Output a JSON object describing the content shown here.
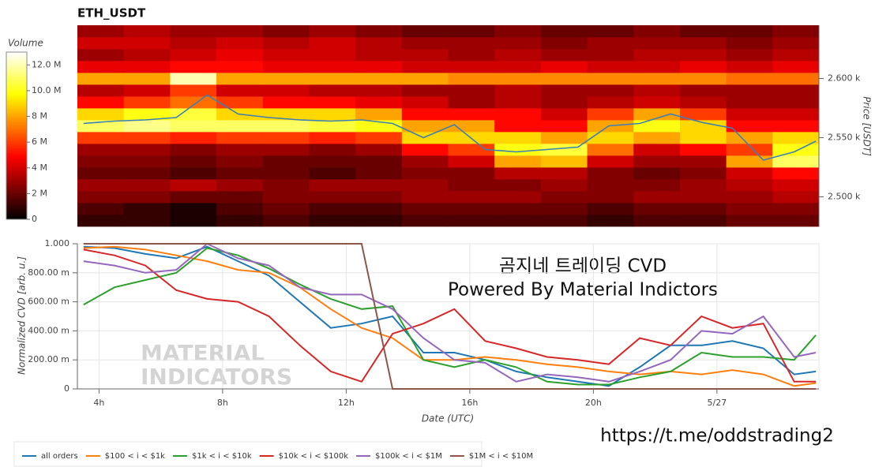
{
  "chart_data": [
    {
      "type": "heatmap",
      "title": "ETH_USDT",
      "ylabel": "Price [USDT]",
      "zlabel": "Volume",
      "colorscale": "hot",
      "xlim": [
        3.3,
        27.3
      ],
      "x": [
        4.05,
        5.55,
        7.05,
        8.55,
        10.05,
        11.55,
        13.05,
        14.55,
        16.05,
        17.55,
        19.05,
        20.55,
        22.05,
        23.55,
        25.05,
        26.55
      ],
      "y": [
        2480,
        2490,
        2500,
        2510,
        2520,
        2530,
        2540,
        2550,
        2560,
        2570,
        2580,
        2590,
        2600,
        2610,
        2620,
        2630,
        2640
      ],
      "ylim": [
        2475,
        2645
      ],
      "yticks": [
        {
          "value": 2500,
          "label": "2.500 k"
        },
        {
          "value": 2550,
          "label": "2.550 k"
        },
        {
          "value": 2600,
          "label": "2.600 k"
        }
      ],
      "zlim": [
        0,
        13
      ],
      "zticks": [
        0,
        {
          "value": 2,
          "label": "2 M"
        },
        {
          "value": 4,
          "label": "4 M"
        },
        {
          "value": 6,
          "label": "6 M"
        },
        {
          "value": 8,
          "label": "8 M"
        },
        {
          "value": 10,
          "label": "10.0 M"
        },
        {
          "value": 12,
          "label": "12.0 M"
        }
      ],
      "z": [
        [
          1,
          1,
          0.5,
          1,
          1.5,
          1,
          1,
          1.5,
          1.5,
          1.5,
          1.5,
          1,
          1.5,
          1.5,
          2,
          2
        ],
        [
          1.5,
          1,
          0.5,
          1.5,
          2,
          1.5,
          1.5,
          2,
          2,
          2,
          2,
          1.5,
          2,
          2,
          2.5,
          2.5
        ],
        [
          2.5,
          2.5,
          2,
          2,
          2.5,
          2.5,
          2.5,
          3,
          3,
          3,
          2.5,
          2.5,
          3,
          3,
          3,
          3.5
        ],
        [
          3,
          3,
          3.5,
          3,
          2.5,
          3,
          3,
          3,
          2.5,
          2.5,
          3,
          2.5,
          2.5,
          3,
          3.5,
          4
        ],
        [
          2,
          2,
          1.5,
          2,
          2,
          1.5,
          2,
          2.5,
          2.5,
          3.5,
          3.5,
          2.5,
          2,
          2.5,
          4,
          5
        ],
        [
          2.5,
          2.5,
          2,
          2.5,
          2,
          2,
          2,
          3,
          4,
          8,
          8.5,
          4,
          3,
          3,
          8,
          11
        ],
        [
          3,
          3,
          2.5,
          3,
          3,
          2.5,
          3,
          5,
          6,
          10,
          10.5,
          7,
          4,
          5,
          6,
          10
        ],
        [
          6,
          6,
          5.5,
          6,
          6,
          5.5,
          6,
          9,
          9,
          9,
          8,
          9,
          8,
          9,
          8,
          9
        ],
        [
          11,
          11.5,
          11,
          11,
          11,
          10.5,
          10,
          8,
          8,
          5,
          5,
          8,
          10,
          9,
          5,
          5
        ],
        [
          9,
          10,
          10.5,
          9,
          9,
          9,
          8,
          5,
          5,
          5,
          4,
          6,
          8,
          6,
          4,
          4
        ],
        [
          5,
          6,
          7,
          6,
          5,
          5,
          4.5,
          4,
          3,
          3.5,
          3,
          3.5,
          4,
          3.5,
          3,
          3
        ],
        [
          3.5,
          4,
          6,
          4,
          4,
          3.5,
          3.5,
          3,
          3,
          3.5,
          3,
          3,
          3.5,
          3,
          3,
          3
        ],
        [
          8,
          8,
          12,
          8,
          8,
          8,
          8,
          8,
          7.5,
          7.5,
          7.5,
          7.5,
          7.5,
          7.5,
          7,
          7
        ],
        [
          4.5,
          4.5,
          5,
          5,
          4.5,
          4.5,
          4.5,
          4,
          4,
          4,
          4.5,
          4,
          4,
          4.5,
          4,
          4.5
        ],
        [
          3,
          3.5,
          4,
          4.5,
          4,
          4,
          3.5,
          3.5,
          3,
          3.5,
          3,
          3,
          3.5,
          3.5,
          3,
          3.5
        ],
        [
          4,
          4,
          3.5,
          4,
          3.5,
          4,
          3.5,
          3,
          3,
          3,
          2.5,
          3,
          3,
          3,
          2.5,
          3
        ],
        [
          3,
          3.5,
          3,
          3,
          2.5,
          3,
          2.5,
          2,
          2,
          2.5,
          2,
          2,
          2.5,
          2,
          2,
          2.5
        ]
      ],
      "line": {
        "color": "#3b80b5",
        "x": [
          3.5,
          4.5,
          5.5,
          6.5,
          7.5,
          8.5,
          9.5,
          10.5,
          11.5,
          12.5,
          13.5,
          14.5,
          15.5,
          16.5,
          17.5,
          18.5,
          19.5,
          20.5,
          21.5,
          22.5,
          23.5,
          24.5,
          25.5,
          26.5,
          27.2
        ],
        "values": [
          2562,
          2564,
          2565,
          2567,
          2586,
          2570,
          2567,
          2565,
          2564,
          2565,
          2562,
          2550,
          2561,
          2540,
          2538,
          2540,
          2542,
          2560,
          2562,
          2570,
          2563,
          2558,
          2531,
          2538,
          2547
        ]
      }
    },
    {
      "type": "line",
      "ylabel": "Normalized CVD [arb. u.]",
      "xlabel": "Date (UTC)",
      "grid": true,
      "xlim": [
        3.3,
        27.3
      ],
      "xticks": [
        {
          "value": 4,
          "label": "4h"
        },
        {
          "value": 8,
          "label": "8h"
        },
        {
          "value": 12,
          "label": "12h"
        },
        {
          "value": 16,
          "label": "16h"
        },
        {
          "value": 20,
          "label": "20h"
        },
        {
          "value": 24,
          "label": "5/27"
        }
      ],
      "ylim": [
        0,
        1
      ],
      "yticks": [
        0,
        {
          "value": 0.2,
          "label": "200.00 m"
        },
        {
          "value": 0.4,
          "label": "400.00 m"
        },
        {
          "value": 0.6,
          "label": "600.00 m"
        },
        {
          "value": 0.8,
          "label": "800.00 m"
        },
        {
          "value": 1,
          "label": "1.000"
        }
      ],
      "annotations": [
        "곰지네 트레이딩 CVD",
        "Powered By Material Indictors",
        "https://t.me/oddstrading2"
      ],
      "watermark": [
        "MATERIAL",
        "INDICATORS"
      ],
      "x": [
        3.5,
        4.5,
        5.5,
        6.5,
        7.5,
        8.5,
        9.5,
        10.5,
        11.5,
        12.5,
        13.5,
        14.5,
        15.5,
        16.5,
        17.5,
        18.5,
        19.5,
        20.5,
        21.5,
        22.5,
        23.5,
        24.5,
        25.5,
        26.5,
        27.2
      ],
      "series": [
        {
          "name": "all orders",
          "color": "#1f77b4",
          "values": [
            0.98,
            0.97,
            0.93,
            0.9,
            0.98,
            0.88,
            0.78,
            0.6,
            0.42,
            0.45,
            0.5,
            0.25,
            0.25,
            0.2,
            0.12,
            0.08,
            0.05,
            0.02,
            0.15,
            0.3,
            0.3,
            0.33,
            0.28,
            0.1,
            0.12
          ]
        },
        {
          "name": "$100 < i < $1k",
          "color": "#ff7f0e",
          "values": [
            0.97,
            0.98,
            0.96,
            0.92,
            0.88,
            0.82,
            0.8,
            0.7,
            0.55,
            0.42,
            0.35,
            0.2,
            0.2,
            0.22,
            0.2,
            0.17,
            0.15,
            0.12,
            0.1,
            0.12,
            0.1,
            0.13,
            0.1,
            0.02,
            0.04
          ]
        },
        {
          "name": "$1k < i < $10k",
          "color": "#2ca02c",
          "values": [
            0.58,
            0.7,
            0.75,
            0.8,
            0.97,
            0.92,
            0.83,
            0.72,
            0.62,
            0.55,
            0.57,
            0.2,
            0.15,
            0.2,
            0.15,
            0.05,
            0.03,
            0.03,
            0.08,
            0.12,
            0.25,
            0.22,
            0.22,
            0.2,
            0.37
          ]
        },
        {
          "name": "$10k < i < $100k",
          "color": "#d62728",
          "values": [
            0.96,
            0.92,
            0.85,
            0.68,
            0.62,
            0.6,
            0.5,
            0.3,
            0.12,
            0.05,
            0.38,
            0.45,
            0.55,
            0.33,
            0.28,
            0.22,
            0.2,
            0.17,
            0.35,
            0.3,
            0.5,
            0.42,
            0.45,
            0.05,
            0.05
          ]
        },
        {
          "name": "$100k < i < $1M",
          "color": "#9467bd",
          "values": [
            0.88,
            0.85,
            0.8,
            0.82,
            1,
            0.9,
            0.85,
            0.7,
            0.65,
            0.65,
            0.55,
            0.35,
            0.2,
            0.18,
            0.05,
            0.1,
            0.08,
            0.05,
            0.12,
            0.2,
            0.4,
            0.38,
            0.5,
            0.22,
            0.25
          ]
        },
        {
          "name": "$1M < i < $10M",
          "color": "#8c564b",
          "values": [
            1,
            1,
            1,
            1,
            1,
            1,
            1,
            1,
            1,
            1,
            0,
            0,
            0,
            0,
            0,
            0,
            0,
            0,
            0,
            0,
            0,
            0,
            0,
            0,
            0
          ]
        }
      ]
    }
  ]
}
